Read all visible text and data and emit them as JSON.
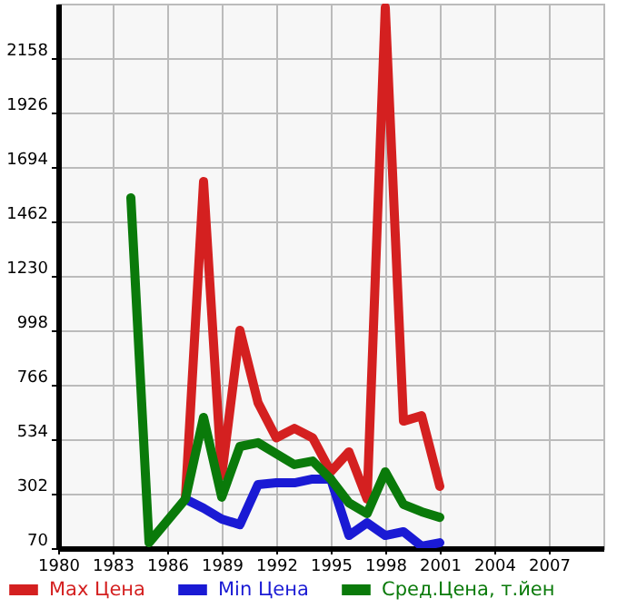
{
  "chart_data": {
    "type": "line",
    "xlim": [
      1980,
      2010
    ],
    "xticks": [
      1980,
      1983,
      1986,
      1989,
      1992,
      1995,
      1998,
      2001,
      2004,
      2007
    ],
    "ylim": [
      70,
      2390
    ],
    "yticks": [
      70,
      302,
      534,
      766,
      998,
      1230,
      1462,
      1694,
      1926,
      2158
    ],
    "grid": true,
    "legend": "bottom",
    "line_style": "solid",
    "series": [
      {
        "name": "Max Цена",
        "color": "#d42020",
        "x": [
          1987,
          1988,
          1989,
          1990,
          1991,
          1992,
          1993,
          1994,
          1995,
          1996,
          1997,
          1998,
          1999,
          2000,
          2001
        ],
        "values": [
          279,
          1632,
          379,
          998,
          689,
          540,
          580,
          540,
          395,
          480,
          279,
          2374,
          611,
          634,
          333
        ]
      },
      {
        "name": "Min Цена",
        "color": "#1a1ad4",
        "x": [
          1987,
          1988,
          1989,
          1990,
          1991,
          1992,
          1993,
          1994,
          1995,
          1996,
          1997,
          1998,
          1999,
          2000,
          2001
        ],
        "values": [
          279,
          240,
          194,
          170,
          341,
          348,
          348,
          364,
          364,
          124,
          178,
          124,
          140,
          78,
          93
        ]
      },
      {
        "name": "Сред.Цена, т.йен",
        "color": "#0a7a0a",
        "x": [
          1984,
          1985,
          1987,
          1988,
          1989,
          1990,
          1991,
          1992,
          1993,
          1994,
          1995,
          1996,
          1997,
          1998,
          1999,
          2000,
          2001
        ],
        "values": [
          1563,
          93,
          279,
          627,
          287,
          503,
          519,
          472,
          426,
          441,
          364,
          263,
          217,
          395,
          256,
          225,
          201
        ]
      }
    ]
  }
}
